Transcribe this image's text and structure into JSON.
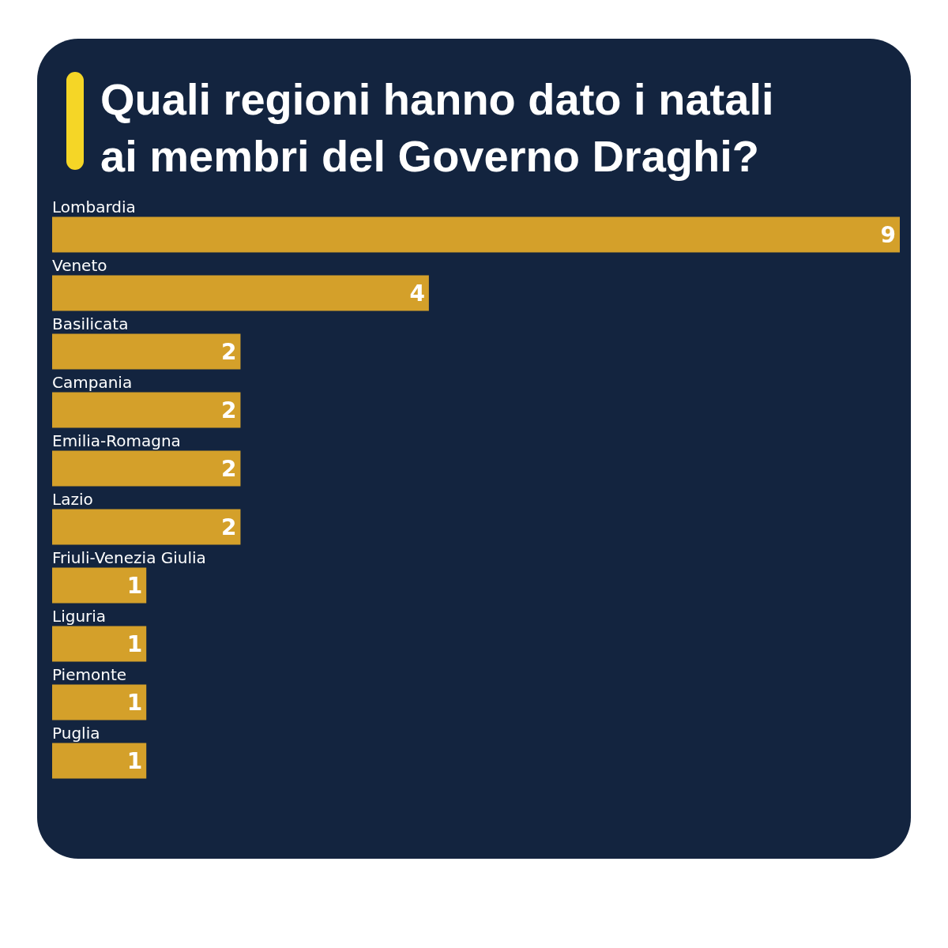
{
  "chart_data": {
    "type": "bar",
    "orientation": "horizontal",
    "title": "Quali regioni hanno dato i natali ai membri del Governo Draghi?",
    "categories": [
      "Lombardia",
      "Veneto",
      "Basilicata",
      "Campania",
      "Emilia-Romagna",
      "Lazio",
      "Friuli-Venezia Giulia",
      "Liguria",
      "Piemonte",
      "Puglia"
    ],
    "values": [
      9,
      4,
      2,
      2,
      2,
      2,
      1,
      1,
      1,
      1
    ],
    "color": "#d4a02a",
    "data_labels": true
  }
}
